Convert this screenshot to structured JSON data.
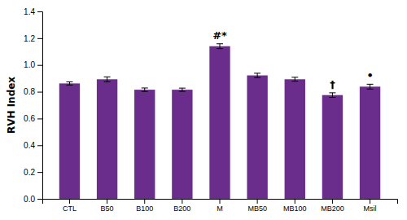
{
  "chart_data": {
    "type": "bar",
    "ylabel": "RVH Index",
    "categories": [
      "CTL",
      "B50",
      "B100",
      "B200",
      "M",
      "MB50",
      "MB100",
      "MB200",
      "Msil"
    ],
    "values": [
      0.862,
      0.893,
      0.815,
      0.815,
      1.14,
      0.922,
      0.893,
      0.775,
      0.838
    ],
    "errors": [
      0.012,
      0.018,
      0.013,
      0.012,
      0.018,
      0.016,
      0.015,
      0.017,
      0.018
    ],
    "color": "#6B2D8B",
    "ylim": [
      0,
      1.4
    ],
    "yticks": [
      {
        "value": 0,
        "label": "0.0"
      },
      0.2,
      0.4,
      0.6,
      0.8,
      {
        "value": 1.0,
        "label": "1.0"
      },
      1.2,
      1.4
    ],
    "grid": false,
    "annotations": [
      {
        "text": "#*",
        "category": "M"
      },
      {
        "text": "†",
        "category": "MB200"
      },
      {
        "text": "•",
        "category": "Msil"
      }
    ]
  }
}
